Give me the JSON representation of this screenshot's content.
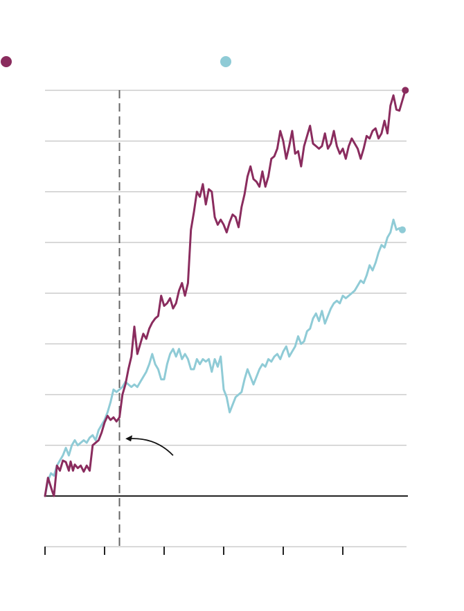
{
  "chart_data": {
    "type": "line",
    "title": "",
    "xlabel": "",
    "ylabel": "",
    "grid": true,
    "legend": "top",
    "xlim": [
      0,
      61
    ],
    "ylim": [
      -1,
      8
    ],
    "x_ticks": [
      0,
      10,
      20,
      30,
      40,
      50
    ],
    "y_gridlines": [
      -1,
      0,
      1,
      2,
      3,
      4,
      5,
      6,
      7,
      8
    ],
    "baseline": 0,
    "reference_line": {
      "x": 12.5,
      "style": "dashed"
    },
    "annotation": {
      "type": "arrow",
      "from": [
        21.5,
        0.8
      ],
      "to": [
        13.5,
        1.13
      ],
      "text": ""
    },
    "series": [
      {
        "name": "",
        "color": "#8a2c5e",
        "endpoint_marker": true,
        "points": [
          [
            0,
            0
          ],
          [
            0.5,
            0.36
          ],
          [
            1.2,
            0.1
          ],
          [
            1.5,
            0
          ],
          [
            2,
            0.6
          ],
          [
            2.5,
            0.5
          ],
          [
            3,
            0.7
          ],
          [
            3.5,
            0.67
          ],
          [
            4,
            0.5
          ],
          [
            4.3,
            0.68
          ],
          [
            4.7,
            0.5
          ],
          [
            5,
            0.62
          ],
          [
            5.5,
            0.55
          ],
          [
            6,
            0.6
          ],
          [
            6.5,
            0.48
          ],
          [
            7,
            0.6
          ],
          [
            7.5,
            0.5
          ],
          [
            8,
            1
          ],
          [
            8.5,
            1.05
          ],
          [
            9,
            1.1
          ],
          [
            9.5,
            1.25
          ],
          [
            10,
            1.45
          ],
          [
            10.5,
            1.58
          ],
          [
            11,
            1.5
          ],
          [
            11.5,
            1.55
          ],
          [
            12,
            1.47
          ],
          [
            12.5,
            1.55
          ],
          [
            13,
            2
          ],
          [
            13.5,
            2.2
          ],
          [
            14,
            2.5
          ],
          [
            14.5,
            2.75
          ],
          [
            15,
            3.34
          ],
          [
            15.5,
            2.8
          ],
          [
            16,
            3.0
          ],
          [
            16.5,
            3.2
          ],
          [
            17,
            3.1
          ],
          [
            17.5,
            3.3
          ],
          [
            18,
            3.42
          ],
          [
            18.5,
            3.5
          ],
          [
            19,
            3.55
          ],
          [
            19.5,
            3.95
          ],
          [
            20,
            3.75
          ],
          [
            20.5,
            3.8
          ],
          [
            21,
            3.9
          ],
          [
            21.5,
            3.7
          ],
          [
            22,
            3.8
          ],
          [
            22.5,
            4.05
          ],
          [
            23,
            4.2
          ],
          [
            23.5,
            3.95
          ],
          [
            24,
            4.2
          ],
          [
            24.5,
            5.25
          ],
          [
            25,
            5.6
          ],
          [
            25.5,
            6.0
          ],
          [
            26,
            5.9
          ],
          [
            26.5,
            6.15
          ],
          [
            27,
            5.75
          ],
          [
            27.5,
            6.05
          ],
          [
            28,
            6.0
          ],
          [
            28.5,
            5.5
          ],
          [
            29,
            5.35
          ],
          [
            29.5,
            5.45
          ],
          [
            30,
            5.35
          ],
          [
            30.5,
            5.2
          ],
          [
            31,
            5.4
          ],
          [
            31.5,
            5.55
          ],
          [
            32,
            5.5
          ],
          [
            32.5,
            5.3
          ],
          [
            33,
            5.7
          ],
          [
            33.5,
            5.95
          ],
          [
            34,
            6.3
          ],
          [
            34.5,
            6.5
          ],
          [
            35,
            6.25
          ],
          [
            35.5,
            6.2
          ],
          [
            36,
            6.1
          ],
          [
            36.5,
            6.4
          ],
          [
            37,
            6.1
          ],
          [
            37.5,
            6.3
          ],
          [
            38,
            6.65
          ],
          [
            38.5,
            6.7
          ],
          [
            39,
            6.85
          ],
          [
            39.5,
            7.2
          ],
          [
            40,
            7.0
          ],
          [
            40.5,
            6.65
          ],
          [
            41,
            6.9
          ],
          [
            41.5,
            7.2
          ],
          [
            42,
            6.75
          ],
          [
            42.5,
            6.8
          ],
          [
            43,
            6.5
          ],
          [
            43.5,
            6.9
          ],
          [
            44,
            7.1
          ],
          [
            44.5,
            7.3
          ],
          [
            45,
            6.95
          ],
          [
            45.5,
            6.9
          ],
          [
            46,
            6.85
          ],
          [
            46.5,
            6.9
          ],
          [
            47,
            7.15
          ],
          [
            47.5,
            6.85
          ],
          [
            48,
            6.95
          ],
          [
            48.5,
            7.2
          ],
          [
            49,
            6.9
          ],
          [
            49.5,
            6.75
          ],
          [
            50,
            6.85
          ],
          [
            50.5,
            6.65
          ],
          [
            51,
            6.9
          ],
          [
            51.5,
            7.05
          ],
          [
            52,
            6.95
          ],
          [
            52.5,
            6.85
          ],
          [
            53,
            6.65
          ],
          [
            53.5,
            6.85
          ],
          [
            54,
            7.1
          ],
          [
            54.5,
            7.05
          ],
          [
            55,
            7.2
          ],
          [
            55.5,
            7.25
          ],
          [
            56,
            7.05
          ],
          [
            56.5,
            7.15
          ],
          [
            57,
            7.4
          ],
          [
            57.5,
            7.15
          ],
          [
            58,
            7.7
          ],
          [
            58.5,
            7.9
          ],
          [
            59,
            7.62
          ],
          [
            59.5,
            7.6
          ],
          [
            60,
            7.8
          ],
          [
            60.5,
            8
          ]
        ]
      },
      {
        "name": "",
        "color": "#8fcbd6",
        "endpoint_marker": true,
        "points": [
          [
            0,
            0
          ],
          [
            0.5,
            0.3
          ],
          [
            1,
            0.45
          ],
          [
            1.5,
            0.4
          ],
          [
            2,
            0.6
          ],
          [
            2.5,
            0.7
          ],
          [
            3,
            0.8
          ],
          [
            3.5,
            0.95
          ],
          [
            4,
            0.8
          ],
          [
            4.5,
            1
          ],
          [
            5,
            1.1
          ],
          [
            5.5,
            1
          ],
          [
            6,
            1.05
          ],
          [
            6.5,
            1.1
          ],
          [
            7,
            1.05
          ],
          [
            7.5,
            1.15
          ],
          [
            8,
            1.2
          ],
          [
            8.5,
            1.1
          ],
          [
            9,
            1.3
          ],
          [
            9.5,
            1.4
          ],
          [
            10,
            1.5
          ],
          [
            10.5,
            1.65
          ],
          [
            11,
            1.85
          ],
          [
            11.5,
            2.1
          ],
          [
            12,
            2.05
          ],
          [
            12.5,
            2.1
          ],
          [
            13,
            2.15
          ],
          [
            13.5,
            2.25
          ],
          [
            14,
            2.2
          ],
          [
            14.5,
            2.15
          ],
          [
            15,
            2.2
          ],
          [
            15.5,
            2.15
          ],
          [
            16,
            2.25
          ],
          [
            16.5,
            2.35
          ],
          [
            17,
            2.45
          ],
          [
            17.5,
            2.6
          ],
          [
            18,
            2.8
          ],
          [
            18.5,
            2.6
          ],
          [
            19,
            2.5
          ],
          [
            19.5,
            2.3
          ],
          [
            20,
            2.3
          ],
          [
            20.5,
            2.6
          ],
          [
            21,
            2.8
          ],
          [
            21.5,
            2.9
          ],
          [
            22,
            2.75
          ],
          [
            22.5,
            2.9
          ],
          [
            23,
            2.7
          ],
          [
            23.5,
            2.8
          ],
          [
            24,
            2.7
          ],
          [
            24.5,
            2.5
          ],
          [
            25,
            2.5
          ],
          [
            25.5,
            2.7
          ],
          [
            26,
            2.6
          ],
          [
            26.5,
            2.7
          ],
          [
            27,
            2.65
          ],
          [
            27.5,
            2.7
          ],
          [
            28,
            2.45
          ],
          [
            28.5,
            2.7
          ],
          [
            29,
            2.55
          ],
          [
            29.5,
            2.75
          ],
          [
            30,
            2.1
          ],
          [
            30.5,
            1.95
          ],
          [
            31,
            1.65
          ],
          [
            31.5,
            1.8
          ],
          [
            32,
            1.95
          ],
          [
            32.5,
            2.0
          ],
          [
            33,
            2.05
          ],
          [
            33.5,
            2.3
          ],
          [
            34,
            2.5
          ],
          [
            34.5,
            2.35
          ],
          [
            35,
            2.2
          ],
          [
            35.5,
            2.35
          ],
          [
            36,
            2.5
          ],
          [
            36.5,
            2.6
          ],
          [
            37,
            2.55
          ],
          [
            37.5,
            2.7
          ],
          [
            38,
            2.65
          ],
          [
            38.5,
            2.75
          ],
          [
            39,
            2.8
          ],
          [
            39.5,
            2.7
          ],
          [
            40,
            2.85
          ],
          [
            40.5,
            2.95
          ],
          [
            41,
            2.75
          ],
          [
            41.5,
            2.85
          ],
          [
            42,
            2.95
          ],
          [
            42.5,
            3.15
          ],
          [
            43,
            3.0
          ],
          [
            43.5,
            3.05
          ],
          [
            44,
            3.25
          ],
          [
            44.5,
            3.3
          ],
          [
            45,
            3.5
          ],
          [
            45.5,
            3.6
          ],
          [
            46,
            3.45
          ],
          [
            46.5,
            3.65
          ],
          [
            47,
            3.4
          ],
          [
            47.5,
            3.55
          ],
          [
            48,
            3.7
          ],
          [
            48.5,
            3.8
          ],
          [
            49,
            3.85
          ],
          [
            49.5,
            3.8
          ],
          [
            50,
            3.95
          ],
          [
            50.5,
            3.9
          ],
          [
            51,
            3.95
          ],
          [
            51.5,
            4.0
          ],
          [
            52,
            4.05
          ],
          [
            52.5,
            4.15
          ],
          [
            53,
            4.25
          ],
          [
            53.5,
            4.2
          ],
          [
            54,
            4.35
          ],
          [
            54.5,
            4.55
          ],
          [
            55,
            4.45
          ],
          [
            55.5,
            4.6
          ],
          [
            56,
            4.8
          ],
          [
            56.5,
            4.95
          ],
          [
            57,
            4.9
          ],
          [
            57.5,
            5.1
          ],
          [
            58,
            5.2
          ],
          [
            58.5,
            5.45
          ],
          [
            59,
            5.25
          ],
          [
            59.5,
            5.28
          ],
          [
            60,
            5.25
          ]
        ]
      }
    ]
  }
}
